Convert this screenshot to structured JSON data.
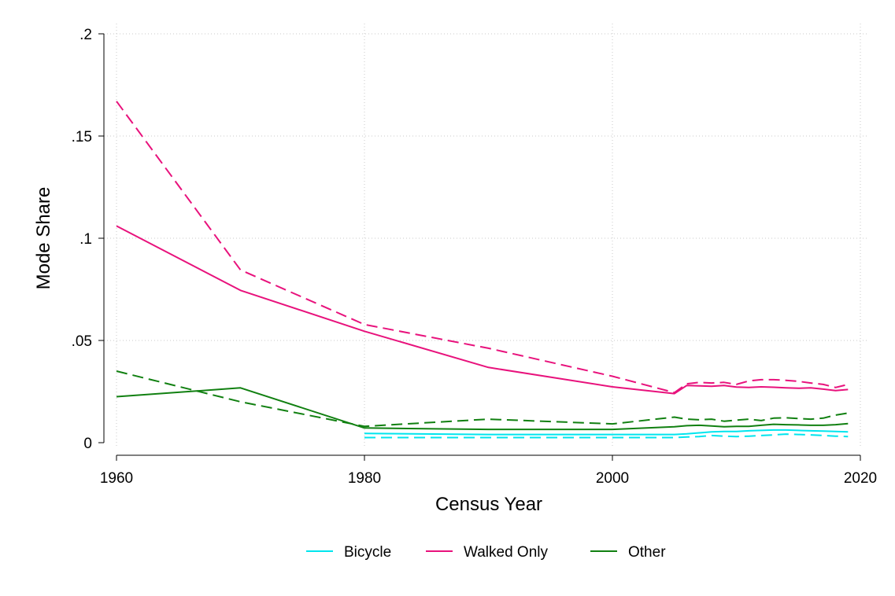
{
  "chart_data": {
    "type": "line",
    "title": "",
    "xlabel": "Census Year",
    "ylabel": "Mode Share",
    "xlim": [
      1960,
      2020
    ],
    "ylim": [
      0,
      0.2
    ],
    "x_ticks": [
      1960,
      1980,
      2000,
      2020
    ],
    "x_tick_labels": [
      "1960",
      "1980",
      "2000",
      "2020"
    ],
    "y_ticks": [
      0,
      0.05,
      0.1,
      0.15,
      0.2
    ],
    "y_tick_labels": [
      "0",
      ".05",
      ".1",
      ".15",
      ".2"
    ],
    "grid": "dotted",
    "legend_position": "bottom",
    "legend": [
      {
        "label": "Bicycle",
        "color": "#00e5ee"
      },
      {
        "label": "Walked Only",
        "color": "#e8127c"
      },
      {
        "label": "Other",
        "color": "#118011"
      }
    ],
    "series": [
      {
        "name": "Bicycle",
        "color": "#00e5ee",
        "dash": "solid",
        "x": [
          1980,
          1990,
          2000,
          2005,
          2006,
          2007,
          2008,
          2009,
          2010,
          2011,
          2012,
          2013,
          2014,
          2015,
          2016,
          2017,
          2018,
          2019
        ],
        "y": [
          0.0045,
          0.004,
          0.004,
          0.004,
          0.0043,
          0.0048,
          0.0053,
          0.0055,
          0.0055,
          0.0058,
          0.006,
          0.0062,
          0.0062,
          0.006,
          0.0058,
          0.0057,
          0.0055,
          0.0053
        ]
      },
      {
        "name": "Bicycle",
        "color": "#00e5ee",
        "dash": "dashed",
        "x": [
          1980,
          1990,
          2000,
          2005,
          2006,
          2007,
          2008,
          2009,
          2010,
          2011,
          2012,
          2013,
          2014,
          2015,
          2016,
          2017,
          2018,
          2019
        ],
        "y": [
          0.0025,
          0.0025,
          0.0025,
          0.0025,
          0.0028,
          0.003,
          0.0035,
          0.0032,
          0.003,
          0.0032,
          0.0035,
          0.0038,
          0.0042,
          0.004,
          0.0038,
          0.0035,
          0.0032,
          0.003
        ]
      },
      {
        "name": "Walked Only",
        "color": "#e8127c",
        "dash": "solid",
        "x": [
          1960,
          1970,
          1980,
          1990,
          2000,
          2005,
          2006,
          2007,
          2008,
          2009,
          2010,
          2011,
          2012,
          2013,
          2014,
          2015,
          2016,
          2017,
          2018,
          2019
        ],
        "y": [
          0.106,
          0.0745,
          0.0545,
          0.0368,
          0.0273,
          0.024,
          0.028,
          0.0278,
          0.0276,
          0.028,
          0.0272,
          0.027,
          0.0273,
          0.0271,
          0.0268,
          0.0266,
          0.0268,
          0.0262,
          0.0255,
          0.026
        ]
      },
      {
        "name": "Walked Only",
        "color": "#e8127c",
        "dash": "dashed",
        "x": [
          1960,
          1970,
          1980,
          1990,
          2000,
          2005,
          2006,
          2007,
          2008,
          2009,
          2010,
          2011,
          2012,
          2013,
          2014,
          2015,
          2016,
          2017,
          2018,
          2019
        ],
        "y": [
          0.167,
          0.0845,
          0.0578,
          0.0462,
          0.0325,
          0.0245,
          0.0288,
          0.0295,
          0.0292,
          0.0295,
          0.0285,
          0.0302,
          0.0308,
          0.0308,
          0.0305,
          0.03,
          0.0292,
          0.0285,
          0.027,
          0.0285
        ]
      },
      {
        "name": "Other",
        "color": "#118011",
        "dash": "solid",
        "x": [
          1960,
          1970,
          1980,
          1990,
          2000,
          2005,
          2006,
          2007,
          2008,
          2009,
          2010,
          2011,
          2012,
          2013,
          2014,
          2015,
          2016,
          2017,
          2018,
          2019
        ],
        "y": [
          0.0225,
          0.0268,
          0.0072,
          0.0065,
          0.0065,
          0.0078,
          0.0083,
          0.0085,
          0.0082,
          0.0078,
          0.008,
          0.008,
          0.0085,
          0.009,
          0.0088,
          0.0087,
          0.0085,
          0.0085,
          0.0088,
          0.0093
        ]
      },
      {
        "name": "Other",
        "color": "#118011",
        "dash": "dashed",
        "x": [
          1960,
          1970,
          1980,
          1990,
          2000,
          2005,
          2006,
          2007,
          2008,
          2009,
          2010,
          2011,
          2012,
          2013,
          2014,
          2015,
          2016,
          2017,
          2018,
          2019
        ],
        "y": [
          0.035,
          0.02,
          0.008,
          0.0115,
          0.0092,
          0.0125,
          0.0115,
          0.0112,
          0.0115,
          0.0105,
          0.011,
          0.0115,
          0.0108,
          0.012,
          0.0122,
          0.0118,
          0.0115,
          0.012,
          0.0135,
          0.0145
        ]
      }
    ]
  }
}
